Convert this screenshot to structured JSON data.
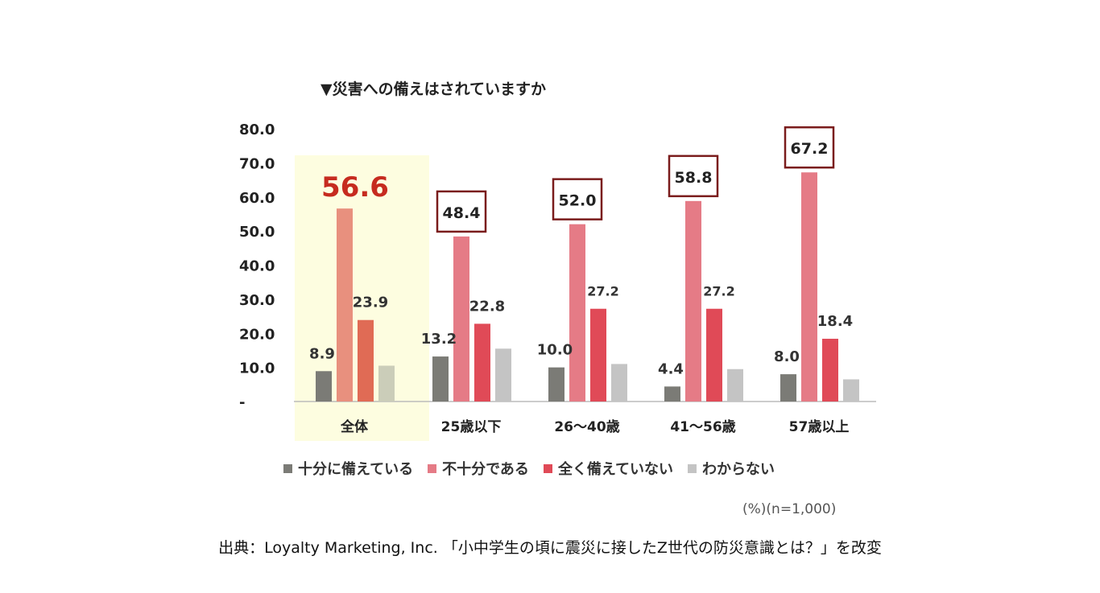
{
  "title": "▼災害への備えはされていますか",
  "unit_note": "(%)(n=1,000)",
  "source": "出典：Loyalty Marketing, Inc. 「小中学生の頃に震災に接したZ世代の防災意識とは？」を改変",
  "colors": {
    "sufficient": "#7b7b76",
    "insufficient_highlight": "#e8907e",
    "insufficient": "#e57b86",
    "none_highlight": "#e06b55",
    "none": "#e04a57",
    "unknown_highlight": "#cbcdb9",
    "unknown": "#c4c4c4",
    "highlight_bg": "#fdfde0",
    "box_border": "#7a1c1c",
    "big_label": "#c62b1f"
  },
  "chart_data": {
    "type": "bar",
    "title": "▼災害への備えはされていますか",
    "categories": [
      "全体",
      "25歳以下",
      "26〜40歳",
      "41〜56歳",
      "57歳以上"
    ],
    "series": [
      {
        "name": "十分に備えている",
        "values": [
          8.9,
          13.2,
          10.0,
          4.4,
          8.0
        ],
        "labels": [
          "8.9",
          "13.2",
          "10.0",
          "4.4",
          "8.0"
        ]
      },
      {
        "name": "不十分である",
        "values": [
          56.6,
          48.4,
          52.0,
          58.8,
          67.2
        ],
        "labels": [
          "56.6",
          "48.4",
          "52.0",
          "58.8",
          "67.2"
        ]
      },
      {
        "name": "全く備えていない",
        "values": [
          23.9,
          22.8,
          27.2,
          27.2,
          18.4
        ],
        "labels": [
          "23.9",
          "22.8",
          "27.2",
          "27.2",
          "18.4"
        ]
      },
      {
        "name": "わからない",
        "values": [
          10.5,
          15.5,
          11.0,
          9.5,
          6.5
        ],
        "labels": [
          "",
          "",
          "",
          "",
          ""
        ]
      }
    ],
    "y_ticks": [
      "-",
      "10.0",
      "20.0",
      "30.0",
      "40.0",
      "50.0",
      "60.0",
      "70.0",
      "80.0"
    ],
    "ylim": [
      0,
      80
    ],
    "highlight_category": "全体",
    "legend_position": "bottom",
    "grid": false
  }
}
